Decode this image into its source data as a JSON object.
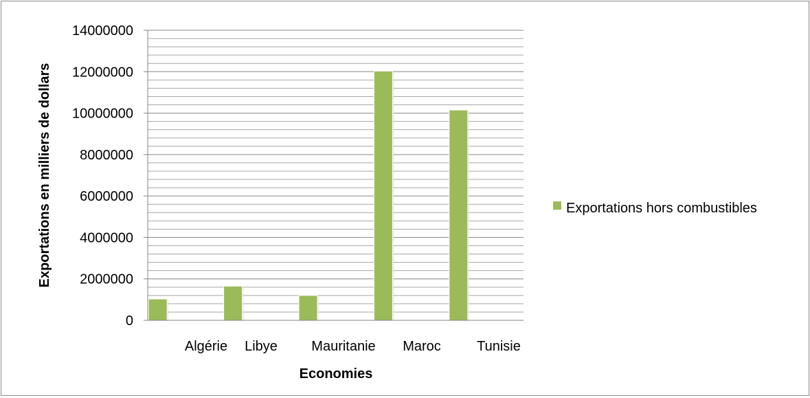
{
  "chart_data": {
    "type": "bar",
    "categories": [
      "Algérie",
      "Libye",
      "Mauritanie",
      "Maroc",
      "Tunisie"
    ],
    "series": [
      {
        "name": "Exportations hors combustibles",
        "color": "#9bbb59",
        "values": [
          1030000,
          1650000,
          1200000,
          12030000,
          10150000
        ]
      }
    ],
    "xlabel": "Economies",
    "ylabel": "Exportations en milliers de dollars",
    "ylim": [
      0,
      14000000
    ],
    "yticks": [
      "0",
      "2000000",
      "4000000",
      "6000000",
      "8000000",
      "10000000",
      "12000000",
      "14000000"
    ],
    "grid": true,
    "legend_position": "right"
  }
}
